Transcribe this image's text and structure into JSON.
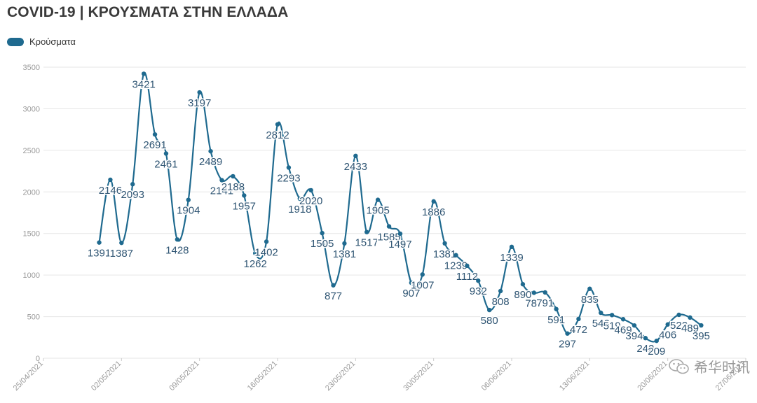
{
  "title": "COVID-19 | ΚΡΟΥΣΜΑΤΑ ΣΤΗΝ ΕΛΛΑΔΑ",
  "legend_label": "Κρούσματα",
  "watermark_text": "希华时讯",
  "colors": {
    "series": "#1f6a8f",
    "grid": "#e6e6e6",
    "label": "#2f5573",
    "axis_text": "#9a9a9a"
  },
  "chart_data": {
    "type": "line",
    "title": "COVID-19 | ΚΡΟΥΣΜΑΤΑ ΣΤΗΝ ΕΛΛΑΔΑ",
    "xlabel": "",
    "ylabel": "",
    "ylim": [
      0,
      3500
    ],
    "yticks": [
      0,
      500,
      1000,
      1500,
      2000,
      2500,
      3000,
      3500
    ],
    "xlim": [
      "25/04/2021",
      "27/06/2021"
    ],
    "xtick_labels": [
      "25/04/2021",
      "02/05/2021",
      "09/05/2021",
      "16/05/2021",
      "23/05/2021",
      "30/05/2021",
      "06/06/2021",
      "13/06/2021",
      "20/06/2021",
      "27/06/2021"
    ],
    "grid": true,
    "legend_position": "top-left",
    "series": [
      {
        "name": "Κρούσματα",
        "points": [
          [
            "30/04/2021",
            1391
          ],
          [
            "01/05/2021",
            2146
          ],
          [
            "02/05/2021",
            1387
          ],
          [
            "03/05/2021",
            2093
          ],
          [
            "04/05/2021",
            3421
          ],
          [
            "05/05/2021",
            2691
          ],
          [
            "06/05/2021",
            2461
          ],
          [
            "07/05/2021",
            1428
          ],
          [
            "08/05/2021",
            1904
          ],
          [
            "09/05/2021",
            3197
          ],
          [
            "10/05/2021",
            2489
          ],
          [
            "11/05/2021",
            2141
          ],
          [
            "12/05/2021",
            2188
          ],
          [
            "13/05/2021",
            1957
          ],
          [
            "14/05/2021",
            1262
          ],
          [
            "15/05/2021",
            1402
          ],
          [
            "16/05/2021",
            2812
          ],
          [
            "17/05/2021",
            2293
          ],
          [
            "18/05/2021",
            1918
          ],
          [
            "19/05/2021",
            2020
          ],
          [
            "20/05/2021",
            1505
          ],
          [
            "21/05/2021",
            877
          ],
          [
            "22/05/2021",
            1381
          ],
          [
            "23/05/2021",
            2433
          ],
          [
            "24/05/2021",
            1517
          ],
          [
            "25/05/2021",
            1905
          ],
          [
            "26/05/2021",
            1585
          ],
          [
            "27/05/2021",
            1497
          ],
          [
            "28/05/2021",
            907
          ],
          [
            "29/05/2021",
            1007
          ],
          [
            "30/05/2021",
            1886
          ],
          [
            "31/05/2021",
            1381
          ],
          [
            "01/06/2021",
            1239
          ],
          [
            "02/06/2021",
            1112
          ],
          [
            "03/06/2021",
            932
          ],
          [
            "04/06/2021",
            580
          ],
          [
            "05/06/2021",
            808
          ],
          [
            "06/06/2021",
            1339
          ],
          [
            "07/06/2021",
            890
          ],
          [
            "08/06/2021",
            787
          ],
          [
            "09/06/2021",
            791
          ],
          [
            "10/06/2021",
            591
          ],
          [
            "11/06/2021",
            297
          ],
          [
            "12/06/2021",
            472
          ],
          [
            "13/06/2021",
            835
          ],
          [
            "14/06/2021",
            546
          ],
          [
            "15/06/2021",
            519
          ],
          [
            "16/06/2021",
            469
          ],
          [
            "17/06/2021",
            394
          ],
          [
            "18/06/2021",
            242
          ],
          [
            "19/06/2021",
            209
          ],
          [
            "20/06/2021",
            406
          ],
          [
            "21/06/2021",
            522
          ],
          [
            "22/06/2021",
            489
          ],
          [
            "23/06/2021",
            395
          ]
        ]
      }
    ]
  }
}
